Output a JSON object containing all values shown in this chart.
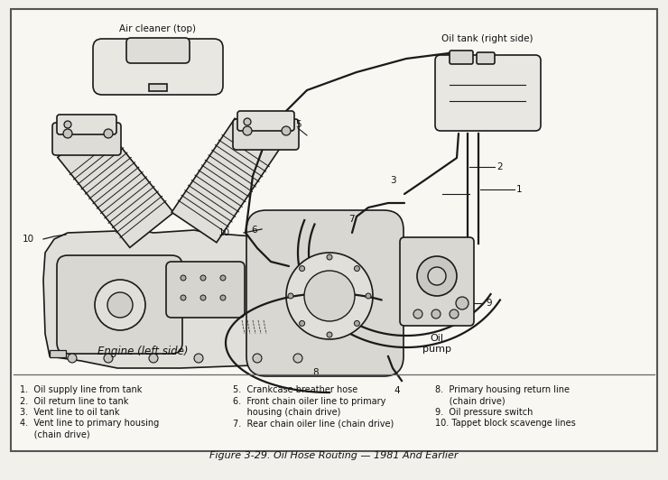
{
  "title": "Figure 3-29. Oil Hose Routing — 1981 And Earlier",
  "bg": "#f2f0eb",
  "diagram_bg": "#f8f7f2",
  "line_color": "#1a1a1a",
  "text_color": "#111111",
  "figsize": [
    7.4,
    5.32
  ],
  "dpi": 100,
  "legend_col1": [
    "1.  Oil supply line from tank",
    "2.  Oil return line to tank",
    "3.  Vent line to oil tank",
    "4.  Vent line to primary housing",
    "     (chain drive)"
  ],
  "legend_col2": [
    "5.  Crankcase breather hose",
    "6.  Front chain oiler line to primary",
    "     housing (chain drive)",
    "7.  Rear chain oiler line (chain drive)",
    ""
  ],
  "legend_col3": [
    "8.  Primary housing return line",
    "     (chain drive)",
    "9.  Oil pressure switch",
    "10. Tappet block scavenge lines",
    ""
  ],
  "caption": "Figure 3-29. Oil Hose Routing — 1981 And Earlier"
}
